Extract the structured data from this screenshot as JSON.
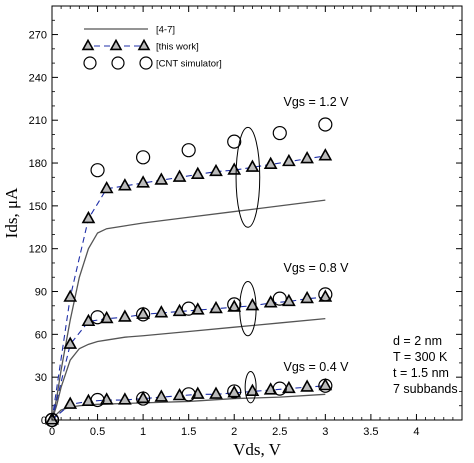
{
  "chart_data": {
    "type": "line",
    "xlabel": "Vds, V",
    "ylabel": "Ids, μA",
    "xlim": [
      0,
      4.5
    ],
    "ylim": [
      0,
      290
    ],
    "xticks": [
      "0",
      "0.5",
      "1",
      "1.5",
      "2",
      "2.5",
      "3",
      "3.5",
      "4"
    ],
    "yticks": [
      "0",
      "30",
      "60",
      "90",
      "120",
      "150",
      "180",
      "210",
      "240",
      "270"
    ],
    "legend": {
      "placement": "top-left",
      "entries": [
        "[4-7]",
        "[this work]",
        "[CNT simulator]"
      ]
    },
    "series": [
      {
        "name": "[4-7]",
        "style": "solid",
        "curves": [
          {
            "vgs": 1.2,
            "x": [
              0,
              0.05,
              0.1,
              0.2,
              0.3,
              0.4,
              0.5,
              0.6,
              0.8,
              1.0,
              1.5,
              2.0,
              2.5,
              3.0
            ],
            "y": [
              0,
              15,
              35,
              70,
              100,
              120,
              131,
              134,
              136,
              138,
              142,
              146,
              150,
              154
            ]
          },
          {
            "vgs": 0.8,
            "x": [
              0,
              0.05,
              0.1,
              0.2,
              0.3,
              0.4,
              0.5,
              0.6,
              0.8,
              1.0,
              1.5,
              2.0,
              2.5,
              3.0
            ],
            "y": [
              0,
              10,
              23,
              42,
              50,
              53,
              55,
              56,
              58,
              59,
              62,
              65,
              68,
              71
            ]
          },
          {
            "vgs": 0.4,
            "x": [
              0,
              0.05,
              0.1,
              0.2,
              0.3,
              0.5,
              1.0,
              1.5,
              2.0,
              2.5,
              3.0
            ],
            "y": [
              0,
              4,
              7,
              9,
              10,
              11,
              12,
              13,
              15,
              16,
              18
            ]
          }
        ]
      },
      {
        "name": "[this work]",
        "style": "dashed-triangle",
        "curves": [
          {
            "vgs": 1.2,
            "x": [
              0,
              0.2,
              0.4,
              0.6,
              0.8,
              1.0,
              1.2,
              1.4,
              1.6,
              1.8,
              2.0,
              2.2,
              2.4,
              2.6,
              2.8,
              3.0
            ],
            "y": [
              0,
              86,
              141,
              162,
              164,
              166,
              168,
              170,
              172,
              174,
              175,
              177,
              179,
              181,
              183,
              185
            ]
          },
          {
            "vgs": 0.8,
            "x": [
              0,
              0.2,
              0.4,
              0.6,
              0.8,
              1.0,
              1.2,
              1.4,
              1.6,
              1.8,
              2.0,
              2.2,
              2.4,
              2.6,
              2.8,
              3.0
            ],
            "y": [
              0,
              53,
              69,
              71,
              72,
              74,
              75,
              76,
              77,
              78,
              79,
              80,
              82,
              83,
              85,
              86
            ]
          },
          {
            "vgs": 0.4,
            "x": [
              0,
              0.2,
              0.4,
              0.6,
              0.8,
              1.0,
              1.2,
              1.4,
              1.6,
              1.8,
              2.0,
              2.2,
              2.4,
              2.6,
              2.8,
              3.0
            ],
            "y": [
              0,
              11,
              13,
              14,
              14,
              15,
              16,
              17,
              18,
              18,
              19,
              20,
              21,
              22,
              23,
              24
            ]
          }
        ]
      },
      {
        "name": "[CNT simulator]",
        "style": "circle",
        "curves": [
          {
            "vgs": 1.2,
            "x": [
              0,
              0.5,
              1.0,
              1.5,
              2.0,
              2.5,
              3.0
            ],
            "y": [
              0,
              175,
              184,
              189,
              195,
              201,
              207
            ]
          },
          {
            "vgs": 0.8,
            "x": [
              0,
              0.5,
              1.0,
              1.5,
              2.0,
              2.5,
              3.0
            ],
            "y": [
              0,
              72,
              74,
              78,
              81,
              85,
              88
            ]
          },
          {
            "vgs": 0.4,
            "x": [
              0,
              0.5,
              1.0,
              1.5,
              2.0,
              2.5,
              3.0
            ],
            "y": [
              0,
              14,
              15,
              18,
              20,
              22,
              24
            ]
          }
        ]
      }
    ],
    "annotations": [
      {
        "text": "Vgs = 1.2 V",
        "x": 2.2,
        "y": 172
      },
      {
        "text": "Vgs = 0.8 V",
        "x": 2.2,
        "y": 78
      },
      {
        "text": "Vgs = 0.4 V",
        "x": 2.2,
        "y": 22
      }
    ],
    "ellipses": [
      {
        "cx": 2.15,
        "cy": 170,
        "rx": 0.13,
        "ry": 35
      },
      {
        "cx": 2.15,
        "cy": 78,
        "rx": 0.09,
        "ry": 19
      },
      {
        "cx": 2.18,
        "cy": 23,
        "rx": 0.06,
        "ry": 11
      }
    ],
    "parameters": [
      "d = 2 nm",
      "T = 300 K",
      "t = 1.5 nm",
      "7 subbands"
    ]
  }
}
